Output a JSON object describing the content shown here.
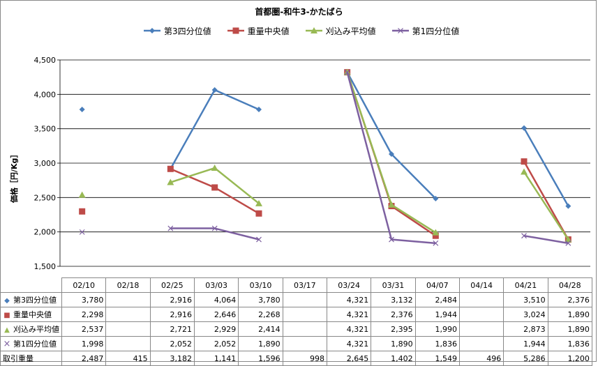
{
  "chart_data": {
    "type": "line",
    "title": "首都圏-和牛3-かたばら",
    "ylabel": "価格［円/Kg］",
    "ylim": [
      1500,
      4500
    ],
    "yticks": [
      "1,500",
      "2,000",
      "2,500",
      "3,000",
      "3,500",
      "4,000",
      "4,500"
    ],
    "yticks_values": [
      1500,
      2000,
      2500,
      3000,
      3500,
      4000,
      4500
    ],
    "grid": true,
    "legend_position": "top",
    "categories": [
      "02/10",
      "02/18",
      "02/25",
      "03/03",
      "03/10",
      "03/17",
      "03/24",
      "03/31",
      "04/07",
      "04/14",
      "04/21",
      "04/28"
    ],
    "series": [
      {
        "name": "第3四分位値",
        "color": "#4a7ebb",
        "marker": "diamond",
        "values": [
          3780,
          null,
          2916,
          4064,
          3780,
          null,
          4321,
          3132,
          2484,
          null,
          3510,
          2376
        ],
        "labels": [
          "3,780",
          "",
          "2,916",
          "4,064",
          "3,780",
          "",
          "4,321",
          "3,132",
          "2,484",
          "",
          "3,510",
          "2,376"
        ]
      },
      {
        "name": "重量中央値",
        "color": "#be4b48",
        "marker": "square",
        "values": [
          2298,
          null,
          2916,
          2646,
          2268,
          null,
          4321,
          2376,
          1944,
          null,
          3024,
          1890
        ],
        "labels": [
          "2,298",
          "",
          "2,916",
          "2,646",
          "2,268",
          "",
          "4,321",
          "2,376",
          "1,944",
          "",
          "3,024",
          "1,890"
        ]
      },
      {
        "name": "刈込み平均値",
        "color": "#98b954",
        "marker": "triangle",
        "values": [
          2537,
          null,
          2721,
          2929,
          2414,
          null,
          4321,
          2395,
          1990,
          null,
          2873,
          1890
        ],
        "labels": [
          "2,537",
          "",
          "2,721",
          "2,929",
          "2,414",
          "",
          "4,321",
          "2,395",
          "1,990",
          "",
          "2,873",
          "1,890"
        ]
      },
      {
        "name": "第1四分位値",
        "color": "#7d60a0",
        "marker": "x",
        "values": [
          1998,
          null,
          2052,
          2052,
          1890,
          null,
          4321,
          1890,
          1836,
          null,
          1944,
          1836
        ],
        "labels": [
          "1,998",
          "",
          "2,052",
          "2,052",
          "1,890",
          "",
          "4,321",
          "1,890",
          "1,836",
          "",
          "1,944",
          "1,836"
        ]
      }
    ],
    "volume_row": {
      "name": "取引重量",
      "values": [
        2487,
        415,
        3182,
        1141,
        1596,
        998,
        2645,
        1402,
        1549,
        496,
        5286,
        1200
      ],
      "labels": [
        "2,487",
        "415",
        "3,182",
        "1,141",
        "1,596",
        "998",
        "2,645",
        "1,402",
        "1,549",
        "496",
        "5,286",
        "1,200"
      ]
    }
  }
}
